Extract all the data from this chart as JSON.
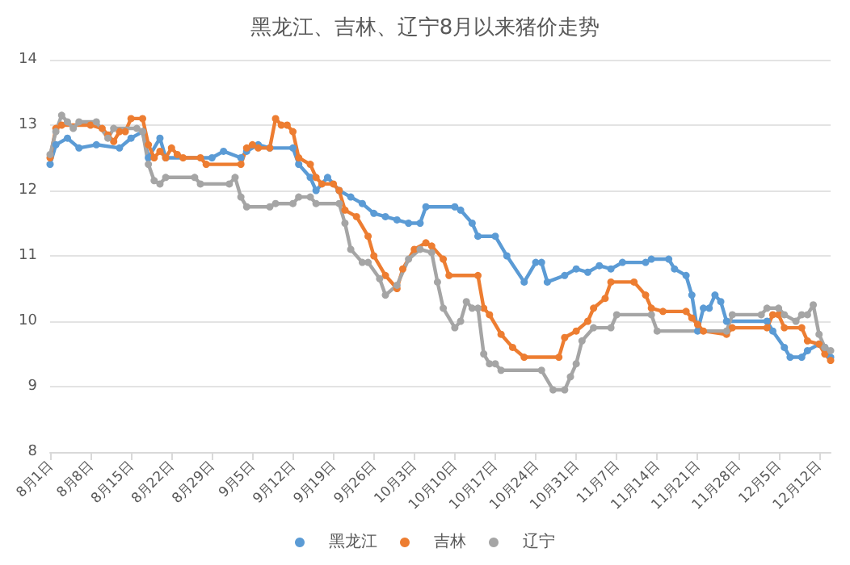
{
  "chart_data": {
    "type": "line",
    "title": "黑龙江、吉林、辽宁8月以来猪价走势",
    "xlim": [
      "--08-01",
      "--12-14"
    ],
    "xticks": [
      {
        "value": "--08-01",
        "label": "8月1日"
      },
      {
        "value": "--08-08",
        "label": "8月8日"
      },
      {
        "value": "--08-15",
        "label": "8月15日"
      },
      {
        "value": "--08-22",
        "label": "8月22日"
      },
      {
        "value": "--08-29",
        "label": "8月29日"
      },
      {
        "value": "--09-05",
        "label": "9月5日"
      },
      {
        "value": "--09-12",
        "label": "9月12日"
      },
      {
        "value": "--09-19",
        "label": "9月19日"
      },
      {
        "value": "--09-26",
        "label": "9月26日"
      },
      {
        "value": "--10-03",
        "label": "10月3日"
      },
      {
        "value": "--10-10",
        "label": "10月10日"
      },
      {
        "value": "--10-17",
        "label": "10月17日"
      },
      {
        "value": "--10-24",
        "label": "10月24日"
      },
      {
        "value": "--10-31",
        "label": "10月31日"
      },
      {
        "value": "--11-07",
        "label": "11月7日"
      },
      {
        "value": "--11-14",
        "label": "11月14日"
      },
      {
        "value": "--11-21",
        "label": "11月21日"
      },
      {
        "value": "--11-28",
        "label": "11月28日"
      },
      {
        "value": "--12-05",
        "label": "12月5日"
      },
      {
        "value": "--12-12",
        "label": "12月12日"
      }
    ],
    "ylim": [
      8,
      14
    ],
    "yticks": [
      8,
      9,
      10,
      11,
      12,
      13,
      14
    ],
    "grid": "y",
    "legend": "bottom",
    "marker": "circle",
    "series": [
      {
        "name": "黑龙江",
        "color": "#5b9bd5",
        "x": [
          "--08-01",
          "--08-02",
          "--08-04",
          "--08-06",
          "--08-09",
          "--08-13",
          "--08-15",
          "--08-17",
          "--08-18",
          "--08-20",
          "--08-21",
          "--08-29",
          "--08-31",
          "--09-03",
          "--09-04",
          "--09-06",
          "--09-08",
          "--09-12",
          "--09-13",
          "--09-15",
          "--09-16",
          "--09-18",
          "--09-20",
          "--09-22",
          "--09-24",
          "--09-26",
          "--09-28",
          "--09-30",
          "--10-02",
          "--10-04",
          "--10-05",
          "--10-10",
          "--10-11",
          "--10-13",
          "--10-14",
          "--10-17",
          "--10-19",
          "--10-22",
          "--10-24",
          "--10-25",
          "--10-26",
          "--10-29",
          "--10-31",
          "--11-02",
          "--11-04",
          "--11-06",
          "--11-08",
          "--11-12",
          "--11-13",
          "--11-16",
          "--11-17",
          "--11-19",
          "--11-20",
          "--11-21",
          "--11-22",
          "--11-23",
          "--11-24",
          "--11-25",
          "--11-26",
          "--12-03",
          "--12-04",
          "--12-06",
          "--12-07",
          "--12-09",
          "--12-10",
          "--12-12",
          "--12-13",
          "--12-14"
        ],
        "values": [
          12.4,
          12.7,
          12.8,
          12.65,
          12.7,
          12.65,
          12.8,
          12.9,
          12.5,
          12.8,
          12.5,
          12.5,
          12.6,
          12.5,
          12.6,
          12.7,
          12.65,
          12.65,
          12.4,
          12.2,
          12.0,
          12.2,
          12.0,
          11.9,
          11.8,
          11.65,
          11.6,
          11.55,
          11.5,
          11.5,
          11.75,
          11.75,
          11.7,
          11.5,
          11.3,
          11.3,
          11.0,
          10.6,
          10.9,
          10.9,
          10.6,
          10.7,
          10.8,
          10.75,
          10.85,
          10.8,
          10.9,
          10.9,
          10.95,
          10.95,
          10.8,
          10.7,
          10.4,
          9.85,
          10.2,
          10.2,
          10.4,
          10.3,
          10.0,
          10.0,
          9.85,
          9.6,
          9.45,
          9.45,
          9.55,
          9.65,
          9.6,
          9.45
        ]
      },
      {
        "name": "吉林",
        "color": "#ed7d31",
        "x": [
          "--08-01",
          "--08-02",
          "--08-03",
          "--08-08",
          "--08-10",
          "--08-11",
          "--08-12",
          "--08-13",
          "--08-14",
          "--08-15",
          "--08-17",
          "--08-18",
          "--08-19",
          "--08-20",
          "--08-21",
          "--08-22",
          "--08-23",
          "--08-24",
          "--08-27",
          "--08-28",
          "--09-03",
          "--09-04",
          "--09-05",
          "--09-06",
          "--09-08",
          "--09-09",
          "--09-10",
          "--09-11",
          "--09-12",
          "--09-13",
          "--09-15",
          "--09-16",
          "--09-17",
          "--09-19",
          "--09-20",
          "--09-21",
          "--09-23",
          "--09-25",
          "--09-26",
          "--09-28",
          "--09-30",
          "--10-01",
          "--10-03",
          "--10-05",
          "--10-06",
          "--10-08",
          "--10-09",
          "--10-14",
          "--10-15",
          "--10-16",
          "--10-18",
          "--10-20",
          "--10-22",
          "--10-28",
          "--10-29",
          "--10-31",
          "--11-02",
          "--11-03",
          "--11-05",
          "--11-06",
          "--11-10",
          "--11-12",
          "--11-13",
          "--11-15",
          "--11-19",
          "--11-20",
          "--11-21",
          "--11-22",
          "--11-26",
          "--11-27",
          "--12-03",
          "--12-04",
          "--12-05",
          "--12-06",
          "--12-09",
          "--12-10",
          "--12-12",
          "--12-13",
          "--12-14"
        ],
        "values": [
          12.5,
          12.95,
          13.0,
          13.0,
          12.95,
          12.85,
          12.75,
          12.9,
          12.9,
          13.1,
          13.1,
          12.7,
          12.5,
          12.6,
          12.5,
          12.65,
          12.55,
          12.5,
          12.5,
          12.4,
          12.4,
          12.65,
          12.7,
          12.65,
          12.65,
          13.1,
          13.0,
          13.0,
          12.9,
          12.5,
          12.4,
          12.2,
          12.1,
          12.1,
          12.0,
          11.7,
          11.6,
          11.3,
          11.0,
          10.7,
          10.5,
          10.8,
          11.1,
          11.2,
          11.15,
          10.95,
          10.7,
          10.7,
          10.2,
          10.1,
          9.8,
          9.6,
          9.45,
          9.45,
          9.75,
          9.85,
          10.0,
          10.2,
          10.35,
          10.6,
          10.6,
          10.4,
          10.2,
          10.15,
          10.15,
          10.05,
          9.95,
          9.85,
          9.8,
          9.9,
          9.9,
          10.1,
          10.1,
          9.9,
          9.9,
          9.7,
          9.65,
          9.5,
          9.4
        ]
      },
      {
        "name": "辽宁",
        "color": "#a5a5a5",
        "x": [
          "--08-01",
          "--08-02",
          "--08-03",
          "--08-04",
          "--08-05",
          "--08-06",
          "--08-09",
          "--08-11",
          "--08-12",
          "--08-16",
          "--08-17",
          "--08-18",
          "--08-19",
          "--08-20",
          "--08-21",
          "--08-26",
          "--08-27",
          "--09-01",
          "--09-02",
          "--09-03",
          "--09-04",
          "--09-08",
          "--09-09",
          "--09-12",
          "--09-13",
          "--09-15",
          "--09-16",
          "--09-20",
          "--09-21",
          "--09-22",
          "--09-24",
          "--09-25",
          "--09-27",
          "--09-28",
          "--09-30",
          "--10-02",
          "--10-04",
          "--10-06",
          "--10-07",
          "--10-08",
          "--10-10",
          "--10-11",
          "--10-12",
          "--10-13",
          "--10-14",
          "--10-15",
          "--10-16",
          "--10-17",
          "--10-18",
          "--10-25",
          "--10-27",
          "--10-29",
          "--10-30",
          "--10-31",
          "--11-01",
          "--11-03",
          "--11-06",
          "--11-07",
          "--11-13",
          "--11-14",
          "--11-26",
          "--11-27",
          "--12-02",
          "--12-03",
          "--12-05",
          "--12-06",
          "--12-08",
          "--12-09",
          "--12-10",
          "--12-11",
          "--12-12",
          "--12-13",
          "--12-14"
        ],
        "values": [
          12.55,
          12.9,
          13.15,
          13.05,
          12.95,
          13.05,
          13.05,
          12.8,
          12.95,
          12.95,
          12.9,
          12.4,
          12.15,
          12.1,
          12.2,
          12.2,
          12.1,
          12.1,
          12.2,
          11.9,
          11.75,
          11.75,
          11.8,
          11.8,
          11.9,
          11.9,
          11.8,
          11.8,
          11.5,
          11.1,
          10.9,
          10.9,
          10.65,
          10.4,
          10.55,
          10.95,
          11.1,
          11.05,
          10.6,
          10.2,
          9.9,
          10.0,
          10.3,
          10.2,
          10.2,
          9.5,
          9.35,
          9.35,
          9.25,
          9.25,
          8.95,
          8.95,
          9.15,
          9.35,
          9.7,
          9.9,
          9.9,
          10.1,
          10.1,
          9.85,
          9.85,
          10.1,
          10.1,
          10.2,
          10.2,
          10.1,
          10.0,
          10.1,
          10.1,
          10.25,
          9.8,
          9.6,
          9.55
        ]
      }
    ]
  }
}
